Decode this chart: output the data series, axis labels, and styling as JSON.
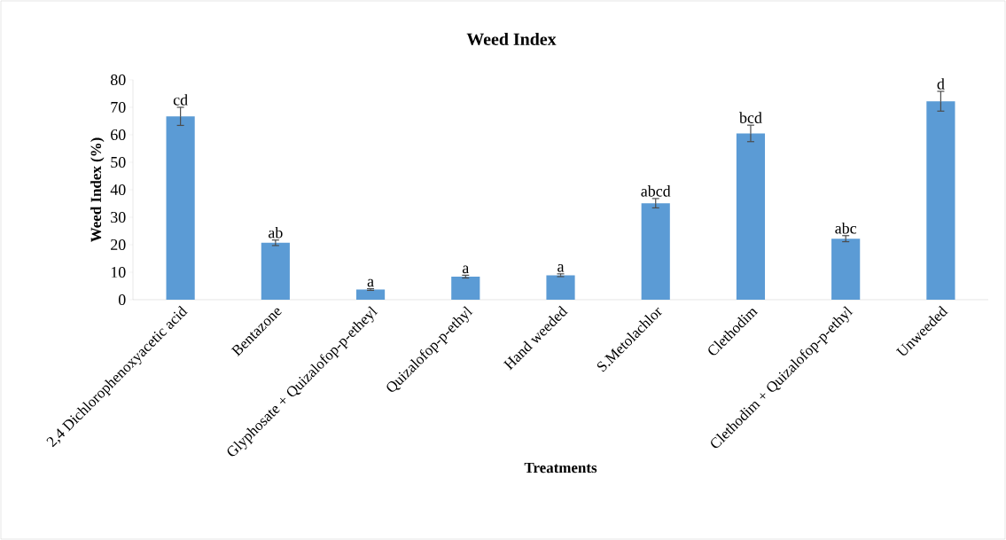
{
  "chart_data": {
    "type": "bar",
    "title": "Weed Index",
    "xlabel": "Treatments",
    "ylabel": "Weed Index (%)",
    "categories": [
      "2,4 Dichlorophenoxyacetic acid",
      "Bentazone",
      "Glyphosate + Quizalofop-p-etheyl",
      "Quizalofop-p-ethyl",
      "Hand weeded",
      "S.Metolachlor",
      "Clethodim",
      "Clethodim + Quizalofop-p-ethyl",
      "Unweeded"
    ],
    "values": [
      66.7,
      20.7,
      3.7,
      8.4,
      8.9,
      35.1,
      60.5,
      22.2,
      72.2
    ],
    "errors": [
      3.3,
      1.0,
      0.3,
      0.5,
      0.5,
      1.7,
      3.0,
      1.1,
      3.6
    ],
    "value_labels": [
      "cd",
      "ab",
      "a",
      "a",
      "a",
      "abcd",
      "bcd",
      "abc",
      "d"
    ],
    "color": "#5b9bd5",
    "ylim": [
      0,
      80
    ],
    "yticks": [
      0,
      10,
      20,
      30,
      40,
      50,
      60,
      70,
      80
    ],
    "grid": false
  }
}
